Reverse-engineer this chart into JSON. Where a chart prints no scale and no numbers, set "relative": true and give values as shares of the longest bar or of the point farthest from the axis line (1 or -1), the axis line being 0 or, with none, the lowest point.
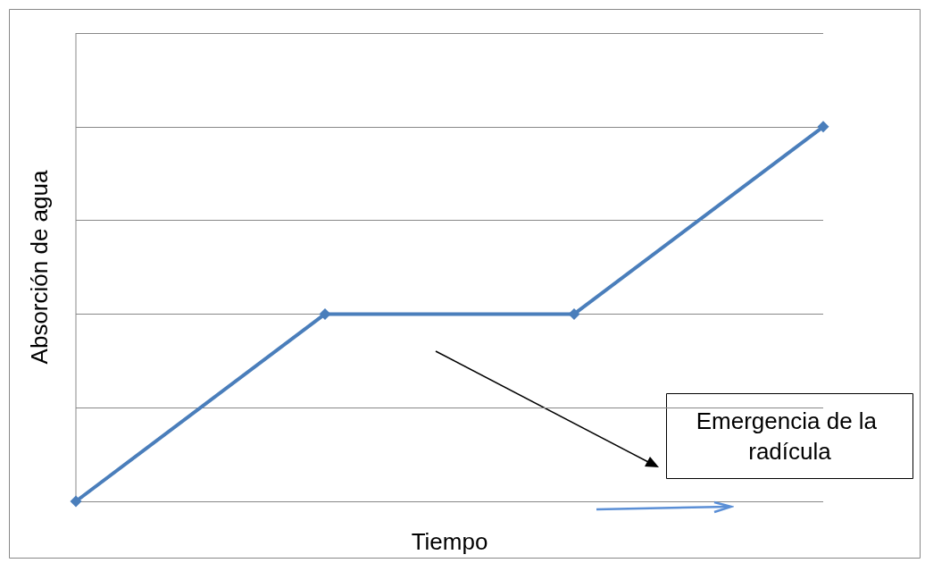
{
  "chart_data": {
    "type": "line",
    "relative": true,
    "categories": [
      null,
      null,
      null,
      null
    ],
    "series": [
      {
        "color": "#4a7ebb",
        "values": [
          0,
          0.5,
          0.5,
          1
        ]
      }
    ],
    "xlabel": "Tiempo",
    "ylabel": "Absorción de agua",
    "annotations": [
      "Emergencia de la radícula"
    ],
    "grid": "y",
    "marker": "diamond",
    "line_style": "solid"
  }
}
